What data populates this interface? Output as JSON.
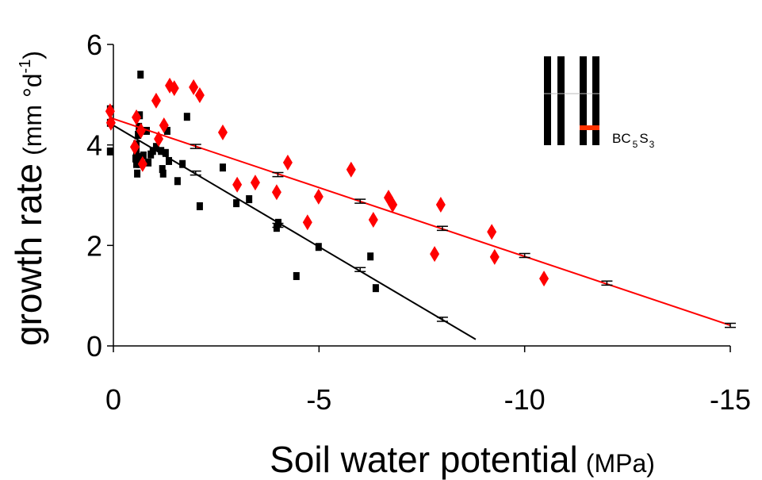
{
  "chart_data": {
    "type": "scatter",
    "x_label": {
      "main": "Soil water potential",
      "unit": "(MPa)"
    },
    "y_label": {
      "main": "growth rate",
      "unit": "(mm °d",
      "sup": "-1",
      "close": ")"
    },
    "annotation": {
      "main": "BC",
      "sub1": "5",
      "mid": "S",
      "sub2": "3"
    },
    "xlim": [
      0,
      -15
    ],
    "ylim": [
      0,
      6
    ],
    "xticks": [
      0,
      -5,
      -10,
      -15
    ],
    "yticks": [
      0,
      2,
      4,
      6
    ],
    "series": [
      {
        "color": "#000000",
        "marker": "square",
        "x": [
          0.08,
          0.08,
          0.08,
          -0.66,
          -0.64,
          -0.62,
          -0.6,
          -0.56,
          -0.56,
          -0.54,
          -0.56,
          -0.58,
          -0.64,
          -0.67,
          -0.73,
          -0.81,
          -0.85,
          -0.91,
          -0.96,
          -1.04,
          -1.16,
          -1.19,
          -1.21,
          -1.27,
          -1.31,
          -1.35,
          -1.56,
          -1.68,
          -1.79,
          -2.1,
          -2.66,
          -2.99,
          -3.3,
          -3.97,
          -4.01,
          -4.45,
          -4.99,
          -6.25,
          -6.38
        ],
        "values": [
          4.71,
          4.44,
          3.87,
          5.4,
          4.59,
          4.36,
          4.2,
          4.01,
          3.88,
          3.73,
          3.62,
          3.43,
          3.62,
          3.76,
          3.79,
          4.28,
          3.65,
          3.81,
          3.88,
          3.96,
          3.88,
          3.52,
          3.43,
          3.84,
          4.28,
          3.68,
          3.28,
          3.62,
          4.56,
          2.78,
          3.55,
          2.84,
          2.92,
          2.35,
          2.45,
          1.39,
          1.97,
          1.78,
          1.15
        ],
        "fit_line": {
          "x": [
            0,
            -8.81
          ],
          "values": [
            4.39,
            0.13
          ]
        },
        "fit_points": {
          "x": [
            -2,
            -4,
            -6,
            -8
          ],
          "values": [
            3.44,
            2.4,
            1.52,
            0.53
          ],
          "errors": [
            0.04,
            0.04,
            0.04,
            0.04
          ]
        }
      },
      {
        "color": "#ff0000",
        "marker": "diamond",
        "x": [
          0.08,
          0.06,
          -0.56,
          -0.52,
          -0.67,
          -0.71,
          -1.04,
          -1.1,
          -1.23,
          -1.37,
          -1.48,
          -1.95,
          -2.1,
          -2.66,
          -3.01,
          -3.45,
          -3.97,
          -4.24,
          -4.72,
          -4.99,
          -5.78,
          -6.32,
          -6.69,
          -6.79,
          -7.96,
          -7.81,
          -9.2,
          -9.27,
          -10.47
        ],
        "values": [
          4.67,
          4.44,
          4.55,
          3.96,
          4.28,
          3.62,
          4.88,
          4.12,
          4.39,
          5.18,
          5.13,
          5.15,
          4.99,
          4.25,
          3.21,
          3.25,
          3.06,
          3.65,
          2.46,
          2.97,
          3.51,
          2.51,
          2.95,
          2.81,
          2.81,
          1.83,
          2.27,
          1.77,
          1.34
        ],
        "fit_line": {
          "x": [
            0,
            -15
          ],
          "values": [
            4.52,
            0.41
          ]
        },
        "fit_points": {
          "x": [
            -2,
            -4,
            -6,
            -8,
            -10,
            -12,
            -15
          ],
          "values": [
            3.97,
            3.41,
            2.88,
            2.34,
            1.8,
            1.25,
            0.41
          ],
          "errors": [
            0.04,
            0.04,
            0.04,
            0.04,
            0.04,
            0.04,
            0.04
          ]
        }
      }
    ]
  }
}
